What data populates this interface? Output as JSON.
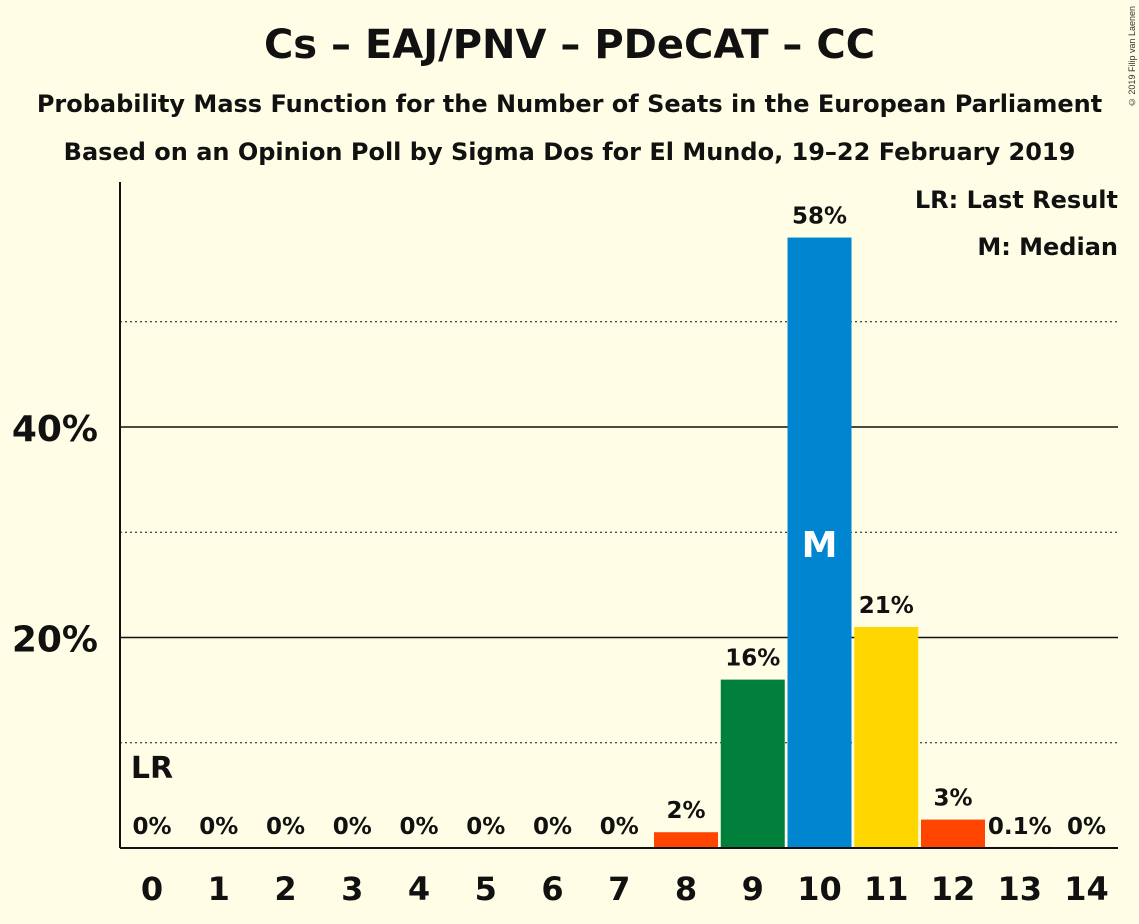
{
  "chart_data": {
    "type": "bar",
    "title": "Cs – EAJ/PNV – PDeCAT – CC",
    "subtitle": "Probability Mass Function for the Number of Seats in the European Parliament",
    "subtitle2": "Based on an Opinion Poll by Sigma Dos for El Mundo, 19–22 February 2019",
    "copyright": "© 2019 Filip van Laenen",
    "xlabel": "",
    "ylabel": "",
    "categories": [
      "0",
      "1",
      "2",
      "3",
      "4",
      "5",
      "6",
      "7",
      "8",
      "9",
      "10",
      "11",
      "12",
      "13",
      "14"
    ],
    "values": [
      0,
      0,
      0,
      0,
      0,
      0,
      0,
      0,
      1.5,
      16,
      58,
      21,
      2.7,
      0.1,
      0
    ],
    "value_labels": [
      "0%",
      "0%",
      "0%",
      "0%",
      "0%",
      "0%",
      "0%",
      "0%",
      "2%",
      "16%",
      "58%",
      "21%",
      "3%",
      "0.1%",
      "0%"
    ],
    "bar_colors": [
      "#ff4500",
      "#ff4500",
      "#ff4500",
      "#ff4500",
      "#ff4500",
      "#ff4500",
      "#ff4500",
      "#ff4500",
      "#ff4500",
      "#00803a",
      "#0086d1",
      "#ffd700",
      "#ff4500",
      "#ff4500",
      "#ff4500"
    ],
    "ylim": [
      0,
      64
    ],
    "y_ticks_major": [
      20,
      40
    ],
    "y_ticks_minor": [
      10,
      30,
      50
    ],
    "y_tick_labels": [
      "20%",
      "40%"
    ],
    "last_result_marker": {
      "category": "0",
      "label": "LR"
    },
    "median_marker": {
      "category": "10",
      "label": "M"
    },
    "legend": {
      "placement": "top-right",
      "items": [
        "LR: Last Result",
        "M: Median"
      ]
    }
  }
}
